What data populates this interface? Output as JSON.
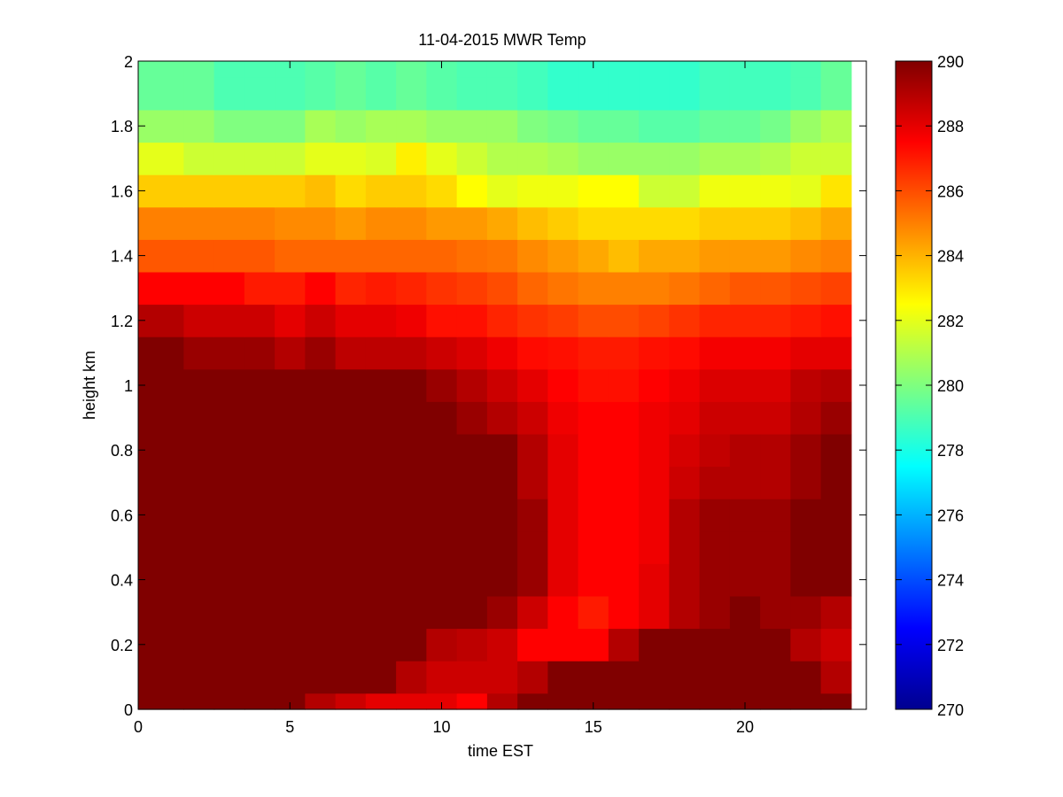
{
  "chart_data": {
    "type": "heatmap",
    "title": "11-04-2015 MWR Temp",
    "xlabel": "time EST",
    "ylabel": "height km",
    "xlim": [
      0,
      24
    ],
    "ylim": [
      0,
      2
    ],
    "xticks": [
      "0",
      "5",
      "10",
      "15",
      "20"
    ],
    "yticks": [
      "0",
      "0.2",
      "0.4",
      "0.6",
      "0.8",
      "1",
      "1.2",
      "1.4",
      "1.6",
      "1.8",
      "2"
    ],
    "colormap": "jet",
    "colorbar": {
      "min": 270,
      "max": 290,
      "ticks": [
        "270",
        "272",
        "274",
        "276",
        "278",
        "280",
        "282",
        "284",
        "286",
        "288",
        "290"
      ]
    },
    "x_edges_hours": [
      0,
      1.5,
      2.5,
      3.5,
      4.5,
      5.5,
      6.5,
      7.5,
      8.5,
      9.5,
      10.5,
      11.5,
      12.5,
      13.5,
      14.5,
      15.5,
      16.5,
      17.5,
      18.5,
      19.5,
      20.5,
      21.5,
      22.5,
      23.5
    ],
    "y_edges_km": [
      0,
      0.05,
      0.15,
      0.25,
      0.35,
      0.45,
      0.55,
      0.65,
      0.75,
      0.85,
      0.95,
      1.05,
      1.15,
      1.25,
      1.35,
      1.45,
      1.55,
      1.65,
      1.75,
      1.85,
      1.95,
      2.0
    ],
    "values_K": [
      [
        291,
        291,
        291,
        291,
        291,
        289,
        288.5,
        288,
        288,
        288,
        287.5,
        289,
        291,
        291,
        291,
        291,
        291,
        291,
        291,
        291,
        291,
        291,
        291
      ],
      [
        291,
        291,
        291,
        291,
        291,
        291,
        291,
        290,
        289,
        288.5,
        288.5,
        288.5,
        289,
        290,
        291,
        291,
        291,
        291,
        291,
        291,
        291,
        290,
        289
      ],
      [
        291,
        291,
        291,
        291,
        291,
        291,
        291,
        291,
        290,
        289,
        288.8,
        288.5,
        287.5,
        287.5,
        287.5,
        289,
        290,
        291,
        291,
        291,
        290,
        289,
        288.5
      ],
      [
        291,
        291,
        291,
        291,
        291,
        291,
        291,
        291,
        291,
        290,
        290,
        289.5,
        288.5,
        287.5,
        287,
        287.5,
        288,
        289,
        289.5,
        290,
        289.5,
        289.5,
        289
      ],
      [
        291,
        291,
        291,
        291,
        291,
        291,
        291,
        291,
        291,
        291,
        291,
        291,
        289.5,
        288,
        287.5,
        287.5,
        288,
        289,
        289.5,
        289.5,
        289.5,
        290,
        290
      ],
      [
        291,
        291,
        291,
        291,
        291,
        291,
        291,
        291,
        291,
        291,
        291,
        291,
        289.5,
        288,
        287.5,
        287.5,
        287.8,
        289,
        289.5,
        289.5,
        289.5,
        290,
        290
      ],
      [
        291,
        291,
        291,
        291,
        291,
        291,
        291,
        291,
        291,
        291,
        291,
        291,
        289.5,
        288,
        287.5,
        287.5,
        287.8,
        289,
        289.5,
        289.5,
        289.5,
        290,
        290
      ],
      [
        291,
        291,
        291,
        291,
        291,
        291,
        291,
        291,
        291,
        291,
        291,
        290,
        289,
        288,
        287.5,
        287.5,
        287.8,
        288.5,
        289,
        289,
        289,
        289.5,
        290
      ],
      [
        291,
        291,
        291,
        291,
        291,
        291,
        291,
        291,
        291,
        291,
        290,
        290,
        289,
        288,
        287.5,
        287.5,
        287.8,
        288.3,
        288.7,
        289,
        289,
        289.5,
        290
      ],
      [
        291,
        291,
        291,
        291,
        291,
        291,
        291,
        291,
        291,
        290,
        289.5,
        289,
        288.5,
        287.8,
        287.5,
        287.5,
        287.8,
        288,
        288.5,
        288.5,
        288.5,
        289,
        289.5
      ],
      [
        291,
        291,
        291,
        291,
        291,
        291,
        290.5,
        290.5,
        290,
        289.5,
        289,
        288.5,
        288,
        287.5,
        287.2,
        287.2,
        287.5,
        287.8,
        288.2,
        288.2,
        288.2,
        288.8,
        289
      ],
      [
        290,
        289.5,
        289.5,
        289.5,
        289,
        289.5,
        288.8,
        288.8,
        288.8,
        288.5,
        288.2,
        287.8,
        287.3,
        287.2,
        287,
        287,
        287.2,
        287.3,
        287.7,
        287.7,
        287.7,
        288,
        288
      ],
      [
        289,
        288.5,
        288.5,
        288.5,
        288,
        288.5,
        288,
        288,
        287.8,
        287.2,
        287.2,
        286.8,
        286.5,
        286.3,
        286,
        286,
        286.2,
        286.5,
        286.8,
        286.8,
        286.8,
        287,
        287.2
      ],
      [
        287.5,
        287.5,
        287.5,
        287,
        287,
        287.5,
        286.8,
        287,
        286.8,
        286.5,
        286.3,
        286,
        285.5,
        285.2,
        285,
        285,
        285,
        285.2,
        285.5,
        285.8,
        285.8,
        286,
        286.2
      ],
      [
        285.8,
        285.8,
        285.8,
        285.8,
        285.5,
        285.5,
        285.5,
        285.5,
        285.5,
        285.5,
        285.3,
        285.2,
        284.8,
        284.5,
        284.2,
        283.8,
        284.2,
        284.2,
        284.5,
        284.5,
        284.5,
        284.8,
        285
      ],
      [
        285,
        285,
        285,
        285,
        284.8,
        284.8,
        284.5,
        284.8,
        284.8,
        284.5,
        284.5,
        284.2,
        283.8,
        283.5,
        283.2,
        283.2,
        283.2,
        283.2,
        283.5,
        283.5,
        283.5,
        283.8,
        284.2
      ],
      [
        283.5,
        283.5,
        283.5,
        283.5,
        283.5,
        283.8,
        283.2,
        283.5,
        283.5,
        283.2,
        282.5,
        282,
        282.2,
        282.2,
        282.5,
        282.5,
        281.5,
        281.5,
        282.2,
        282.2,
        282.2,
        282,
        283
      ],
      [
        282,
        281.5,
        281.5,
        281.5,
        281.5,
        282,
        282,
        281.8,
        282.8,
        282,
        281.5,
        281,
        281,
        280.8,
        280.5,
        280.5,
        280.5,
        280.5,
        280.8,
        280.8,
        281,
        281.5,
        281.5
      ],
      [
        280.5,
        280.5,
        280,
        280,
        280,
        280.8,
        280.5,
        280.8,
        280.8,
        280.5,
        280.5,
        280.5,
        280,
        279.8,
        279.5,
        279.5,
        279.2,
        279.2,
        279.5,
        279.5,
        279.8,
        280.5,
        281
      ],
      [
        279.5,
        279.5,
        279,
        279,
        279,
        279.2,
        279.5,
        279.2,
        279.5,
        279.2,
        279,
        279,
        278.8,
        278.5,
        278.5,
        278.5,
        278.5,
        278.5,
        278.8,
        278.8,
        278.8,
        279,
        279.5
      ],
      [
        279.5,
        279.5,
        279,
        279,
        279,
        279.2,
        279.5,
        279.2,
        279.5,
        279.2,
        279,
        279,
        278.8,
        278.5,
        278.5,
        278.5,
        278.5,
        278.5,
        278.8,
        278.8,
        278.8,
        279,
        279.5
      ]
    ]
  }
}
